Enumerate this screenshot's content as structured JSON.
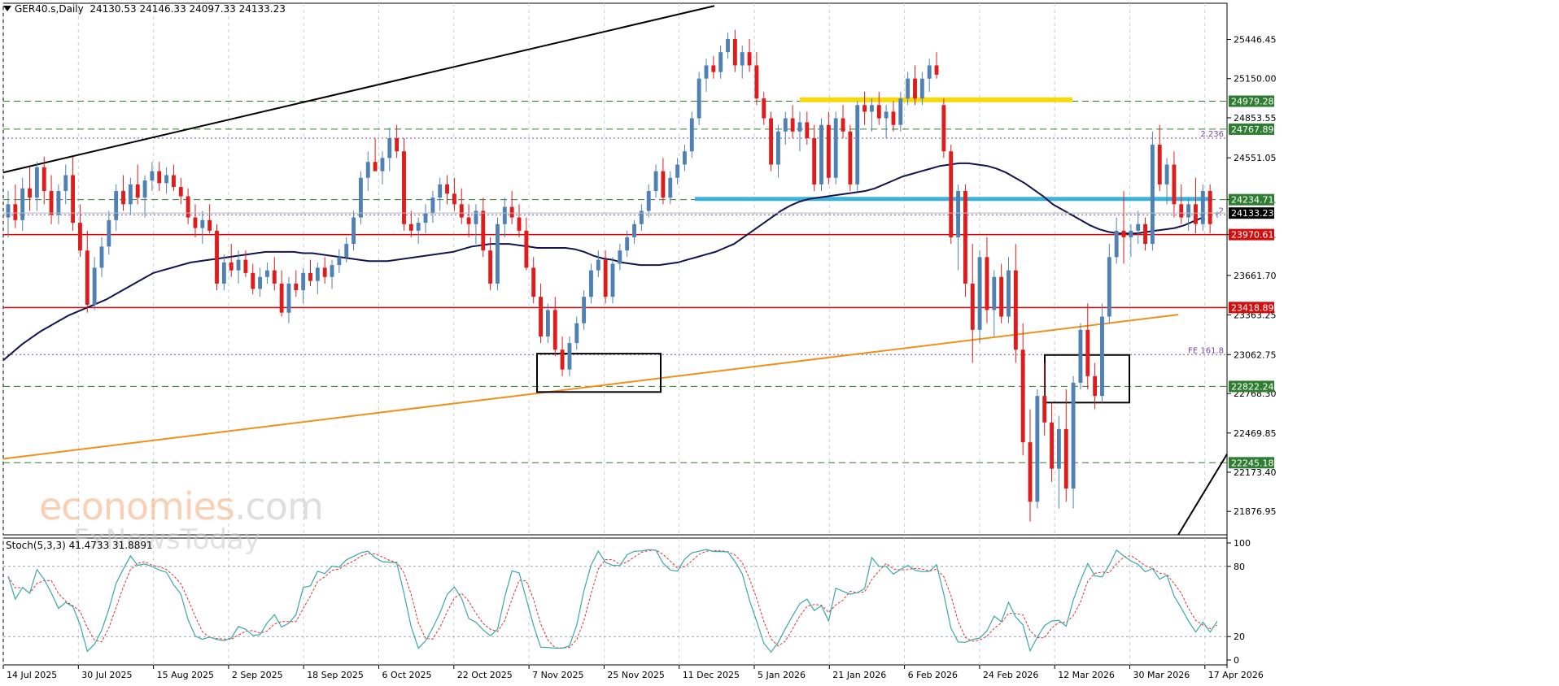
{
  "header": {
    "symbol": "GER40.s,Daily",
    "ohlc": "24130.53 24146.33 24097.33 24133.23"
  },
  "watermark": {
    "brand": "economies",
    "suffix": ".com",
    "sub": "FxNewsToday"
  },
  "oscillator": {
    "title": "Stoch(5,3,3) 41.4733 31.8891"
  },
  "colors": {
    "bull": "#4f81b4",
    "bear": "#e01b1b",
    "ma": "#141450",
    "support_red": "#e00000",
    "green_dash": "#2e7d32",
    "yellow_zone": "#f5d90a",
    "blue_zone": "#3cb2dc",
    "orange_trend": "#f0901a",
    "stoch_main": "#3aa8a8",
    "stoch_signal": "#e03030"
  },
  "chart_data": {
    "type": "candlestick",
    "symbol": "GER40.s",
    "timeframe": "Daily",
    "ylim": [
      21700,
      25720
    ],
    "y_ticks": [
      25446.45,
      25150.0,
      24853.55,
      24551.05,
      24234.71,
      23970.61,
      23661.7,
      23363.25,
      23062.75,
      22768.3,
      22469.85,
      22173.4,
      21876.95
    ],
    "x_tick_labels": [
      "14 Jul 2025",
      "30 Jul 2025",
      "15 Aug 2025",
      "2 Sep 2025",
      "18 Sep 2025",
      "6 Oct 2025",
      "22 Oct 2025",
      "7 Nov 2025",
      "25 Nov 2025",
      "11 Dec 2025",
      "5 Jan 2026",
      "21 Jan 2026",
      "6 Feb 2026",
      "24 Feb 2026",
      "12 Mar 2026",
      "30 Mar 2026",
      "17 Apr 2026"
    ],
    "current_price": 24133.23,
    "horizontal_levels": [
      {
        "price": 24979.28,
        "style": "green-dash",
        "label": "24979.28"
      },
      {
        "price": 24767.89,
        "style": "green-dash",
        "label": "24767.89"
      },
      {
        "price": 24234.71,
        "style": "green-dash",
        "label": "24234.71"
      },
      {
        "price": 23970.61,
        "style": "red-solid",
        "label": "23970.61"
      },
      {
        "price": 23418.89,
        "style": "red-solid",
        "label": "23418.89"
      },
      {
        "price": 22822.24,
        "style": "green-dash",
        "label": "22822.24"
      },
      {
        "price": 22245.18,
        "style": "green-dash",
        "label": "22245.18"
      },
      {
        "price": 24700,
        "style": "fib-dotted",
        "label": "2.236"
      },
      {
        "price": 23062.75,
        "style": "fib-dotted",
        "label": "FE 161.8"
      },
      {
        "price": 24120,
        "style": "fib-dotted",
        "label": "2"
      }
    ],
    "zones": [
      {
        "name": "yellow-resistance",
        "price": 24990
      },
      {
        "name": "blue-resistance",
        "price": 24240
      }
    ],
    "candles": [
      [
        24100,
        24300,
        23950,
        24200
      ],
      [
        24200,
        24350,
        24020,
        24080
      ],
      [
        24080,
        24400,
        24000,
        24320
      ],
      [
        24320,
        24480,
        24150,
        24250
      ],
      [
        24250,
        24520,
        24150,
        24480
      ],
      [
        24480,
        24560,
        24200,
        24300
      ],
      [
        24300,
        24420,
        24050,
        24120
      ],
      [
        24120,
        24350,
        24050,
        24300
      ],
      [
        24300,
        24500,
        24200,
        24420
      ],
      [
        24420,
        24560,
        24000,
        24060
      ],
      [
        24060,
        24200,
        23800,
        23850
      ],
      [
        23850,
        24000,
        23380,
        23440
      ],
      [
        23440,
        23800,
        23400,
        23720
      ],
      [
        23720,
        23950,
        23650,
        23880
      ],
      [
        23880,
        24150,
        23820,
        24080
      ],
      [
        24080,
        24350,
        24000,
        24300
      ],
      [
        24300,
        24420,
        24150,
        24200
      ],
      [
        24200,
        24400,
        24120,
        24350
      ],
      [
        24350,
        24500,
        24200,
        24250
      ],
      [
        24250,
        24420,
        24100,
        24380
      ],
      [
        24380,
        24520,
        24300,
        24450
      ],
      [
        24450,
        24520,
        24300,
        24360
      ],
      [
        24360,
        24480,
        24280,
        24420
      ],
      [
        24420,
        24500,
        24300,
        24330
      ],
      [
        24330,
        24400,
        24200,
        24260
      ],
      [
        24260,
        24320,
        24050,
        24100
      ],
      [
        24100,
        24200,
        23950,
        24020
      ],
      [
        24020,
        24150,
        23900,
        24080
      ],
      [
        24080,
        24200,
        23980,
        24000
      ],
      [
        24000,
        24050,
        23550,
        23600
      ],
      [
        23600,
        23820,
        23550,
        23760
      ],
      [
        23760,
        23900,
        23650,
        23700
      ],
      [
        23700,
        23850,
        23600,
        23780
      ],
      [
        23780,
        23850,
        23650,
        23680
      ],
      [
        23680,
        23750,
        23520,
        23560
      ],
      [
        23560,
        23720,
        23500,
        23650
      ],
      [
        23650,
        23760,
        23600,
        23700
      ],
      [
        23700,
        23800,
        23550,
        23600
      ],
      [
        23600,
        23700,
        23350,
        23380
      ],
      [
        23380,
        23650,
        23300,
        23600
      ],
      [
        23600,
        23700,
        23500,
        23550
      ],
      [
        23550,
        23720,
        23450,
        23680
      ],
      [
        23680,
        23780,
        23580,
        23620
      ],
      [
        23620,
        23760,
        23520,
        23720
      ],
      [
        23720,
        23800,
        23600,
        23650
      ],
      [
        23650,
        23780,
        23560,
        23740
      ],
      [
        23740,
        23860,
        23680,
        23800
      ],
      [
        23800,
        23950,
        23760,
        23900
      ],
      [
        23900,
        24150,
        23850,
        24100
      ],
      [
        24100,
        24450,
        24050,
        24400
      ],
      [
        24400,
        24600,
        24300,
        24520
      ],
      [
        24520,
        24700,
        24450,
        24450
      ],
      [
        24450,
        24600,
        24350,
        24550
      ],
      [
        24550,
        24780,
        24450,
        24700
      ],
      [
        24700,
        24800,
        24550,
        24600
      ],
      [
        24600,
        24700,
        24000,
        24050
      ],
      [
        24050,
        24150,
        23950,
        24000
      ],
      [
        24000,
        24100,
        23900,
        24060
      ],
      [
        24060,
        24200,
        23980,
        24130
      ],
      [
        24130,
        24300,
        24060,
        24250
      ],
      [
        24250,
        24400,
        24150,
        24350
      ],
      [
        24350,
        24420,
        24200,
        24280
      ],
      [
        24280,
        24400,
        24150,
        24200
      ],
      [
        24200,
        24320,
        24050,
        24100
      ],
      [
        24100,
        24200,
        23950,
        24050
      ],
      [
        24050,
        24200,
        23900,
        24150
      ],
      [
        24150,
        24250,
        23800,
        23850
      ],
      [
        23850,
        23950,
        23550,
        23600
      ],
      [
        23600,
        24100,
        23550,
        24050
      ],
      [
        24050,
        24250,
        23950,
        24180
      ],
      [
        24180,
        24300,
        24050,
        24100
      ],
      [
        24100,
        24200,
        23950,
        24000
      ],
      [
        24000,
        24100,
        23700,
        23720
      ],
      [
        23720,
        23800,
        23450,
        23500
      ],
      [
        23500,
        23600,
        23150,
        23200
      ],
      [
        23200,
        23450,
        23150,
        23400
      ],
      [
        23400,
        23500,
        23050,
        23100
      ],
      [
        23100,
        23200,
        22900,
        22950
      ],
      [
        22950,
        23200,
        22900,
        23150
      ],
      [
        23150,
        23350,
        23100,
        23300
      ],
      [
        23300,
        23550,
        23250,
        23500
      ],
      [
        23500,
        23750,
        23450,
        23700
      ],
      [
        23700,
        23850,
        23650,
        23780
      ],
      [
        23780,
        23850,
        23450,
        23500
      ],
      [
        23500,
        23800,
        23450,
        23750
      ],
      [
        23750,
        23900,
        23700,
        23850
      ],
      [
        23850,
        24000,
        23800,
        23950
      ],
      [
        23950,
        24080,
        23900,
        24050
      ],
      [
        24050,
        24200,
        24000,
        24150
      ],
      [
        24150,
        24350,
        24100,
        24300
      ],
      [
        24300,
        24500,
        24250,
        24450
      ],
      [
        24450,
        24550,
        24200,
        24250
      ],
      [
        24250,
        24450,
        24200,
        24400
      ],
      [
        24400,
        24550,
        24350,
        24500
      ],
      [
        24500,
        24650,
        24450,
        24600
      ],
      [
        24600,
        24900,
        24550,
        24850
      ],
      [
        24850,
        25200,
        24800,
        25150
      ],
      [
        25150,
        25300,
        25050,
        25250
      ],
      [
        25250,
        25320,
        25150,
        25200
      ],
      [
        25200,
        25400,
        25150,
        25350
      ],
      [
        25350,
        25500,
        25300,
        25450
      ],
      [
        25450,
        25520,
        25200,
        25250
      ],
      [
        25250,
        25400,
        25150,
        25350
      ],
      [
        25350,
        25450,
        25200,
        25250
      ],
      [
        25250,
        25350,
        24950,
        25000
      ],
      [
        25000,
        25050,
        24800,
        24850
      ],
      [
        24850,
        24900,
        24450,
        24500
      ],
      [
        24500,
        24800,
        24400,
        24750
      ],
      [
        24750,
        24900,
        24650,
        24850
      ],
      [
        24850,
        24950,
        24700,
        24750
      ],
      [
        24750,
        24900,
        24600,
        24820
      ],
      [
        24820,
        24900,
        24650,
        24700
      ],
      [
        24700,
        24800,
        24300,
        24350
      ],
      [
        24350,
        24850,
        24300,
        24800
      ],
      [
        24800,
        24900,
        24350,
        24400
      ],
      [
        24400,
        24900,
        24350,
        24850
      ],
      [
        24850,
        24950,
        24700,
        24750
      ],
      [
        24750,
        24800,
        24300,
        24350
      ],
      [
        24350,
        24980,
        24300,
        24950
      ],
      [
        24950,
        25050,
        24800,
        24900
      ],
      [
        24900,
        25000,
        24750,
        24950
      ],
      [
        24950,
        25050,
        24800,
        24850
      ],
      [
        24850,
        24950,
        24700,
        24900
      ],
      [
        24900,
        24980,
        24750,
        24800
      ],
      [
        24800,
        25050,
        24750,
        25000
      ],
      [
        25000,
        25200,
        24950,
        25150
      ],
      [
        25150,
        25250,
        24950,
        25000
      ],
      [
        25000,
        25200,
        24950,
        25150
      ],
      [
        25150,
        25300,
        25050,
        25250
      ],
      [
        25250,
        25350,
        25150,
        25180
      ],
      [
        24950,
        25000,
        24550,
        24600
      ],
      [
        24600,
        24650,
        23900,
        23950
      ],
      [
        23950,
        24350,
        23700,
        24300
      ],
      [
        24300,
        24350,
        23500,
        23600
      ],
      [
        23600,
        23900,
        23000,
        23250
      ],
      [
        23250,
        23850,
        23150,
        23800
      ],
      [
        23800,
        23950,
        23300,
        23400
      ],
      [
        23400,
        23700,
        23200,
        23650
      ],
      [
        23650,
        23750,
        23300,
        23350
      ],
      [
        23350,
        23800,
        23300,
        23700
      ],
      [
        23700,
        23900,
        23000,
        23100
      ],
      [
        23100,
        23300,
        22300,
        22400
      ],
      [
        22400,
        22650,
        21800,
        21950
      ],
      [
        21950,
        22800,
        21900,
        22750
      ],
      [
        22750,
        23000,
        22450,
        22550
      ],
      [
        22550,
        22700,
        22100,
        22200
      ],
      [
        22200,
        22600,
        21900,
        22500
      ],
      [
        22500,
        22800,
        21950,
        22050
      ],
      [
        22050,
        22900,
        21900,
        22850
      ],
      [
        22850,
        23300,
        22800,
        23250
      ],
      [
        23250,
        23450,
        22800,
        22900
      ],
      [
        22900,
        23000,
        22650,
        22750
      ],
      [
        22750,
        23450,
        22700,
        23350
      ],
      [
        23350,
        23900,
        23300,
        23800
      ],
      [
        23800,
        24100,
        23750,
        24000
      ],
      [
        24000,
        24300,
        23750,
        23950
      ],
      [
        23950,
        24050,
        23800,
        24000
      ],
      [
        24000,
        24150,
        23900,
        24050
      ],
      [
        24050,
        24100,
        23850,
        23900
      ],
      [
        23900,
        24750,
        23850,
        24650
      ],
      [
        24650,
        24800,
        24300,
        24350
      ],
      [
        24350,
        24550,
        24200,
        24500
      ],
      [
        24500,
        24600,
        24100,
        24200
      ],
      [
        24200,
        24350,
        24050,
        24100
      ],
      [
        24100,
        24250,
        24000,
        24200
      ],
      [
        24200,
        24400,
        23980,
        24050
      ],
      [
        24050,
        24350,
        24000,
        24300
      ],
      [
        24300,
        24350,
        23980,
        24050
      ],
      [
        24130,
        24146,
        24097,
        24133
      ]
    ],
    "ma_series": [
      23020,
      23080,
      23140,
      23190,
      23240,
      23280,
      23320,
      23360,
      23390,
      23420,
      23450,
      23480,
      23520,
      23560,
      23600,
      23640,
      23680,
      23700,
      23720,
      23740,
      23760,
      23770,
      23780,
      23790,
      23800,
      23810,
      23820,
      23830,
      23840,
      23840,
      23840,
      23840,
      23830,
      23830,
      23820,
      23810,
      23800,
      23790,
      23780,
      23770,
      23770,
      23770,
      23780,
      23790,
      23800,
      23810,
      23820,
      23830,
      23840,
      23860,
      23880,
      23890,
      23900,
      23900,
      23900,
      23890,
      23880,
      23870,
      23870,
      23870,
      23870,
      23860,
      23840,
      23810,
      23790,
      23780,
      23760,
      23750,
      23740,
      23740,
      23740,
      23750,
      23760,
      23780,
      23800,
      23820,
      23840,
      23870,
      23900,
      23950,
      24000,
      24050,
      24100,
      24150,
      24190,
      24220,
      24240,
      24250,
      24260,
      24270,
      24280,
      24290,
      24300,
      24320,
      24350,
      24380,
      24410,
      24430,
      24450,
      24470,
      24490,
      24500,
      24510,
      24510,
      24500,
      24490,
      24470,
      24440,
      24400,
      24360,
      24310,
      24260,
      24200,
      24160,
      24120,
      24080,
      24040,
      24010,
      23990,
      23980,
      23980,
      23980,
      23990,
      24000,
      24010,
      24020,
      24040,
      24070,
      24100
    ],
    "oscillator": {
      "name": "Stoch(5,3,3)",
      "main": 41.4733,
      "signal": 31.8891,
      "ylim": [
        0,
        100
      ],
      "levels": [
        20,
        80
      ],
      "y_ticks": [
        100,
        80,
        20,
        0
      ]
    }
  }
}
